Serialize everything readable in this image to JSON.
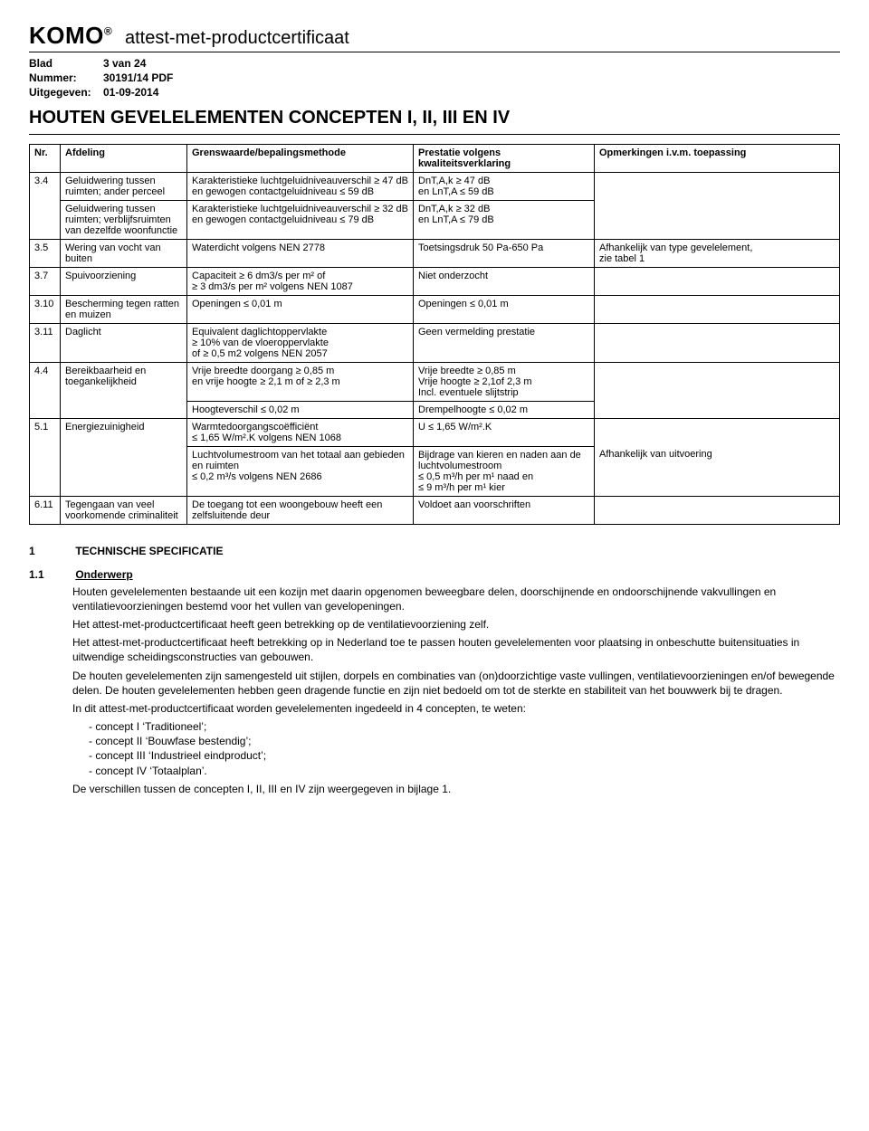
{
  "header": {
    "brand": "KOMO",
    "registered": "®",
    "subtitle": "attest-met-productcertificaat",
    "meta": {
      "blad_label": "Blad",
      "blad_value": "3 van 24",
      "nummer_label": "Nummer:",
      "nummer_value": "30191/14 PDF",
      "uitgegeven_label": "Uitgegeven:",
      "uitgegeven_value": "01-09-2014"
    },
    "heading": "HOUTEN GEVELELEMENTEN CONCEPTEN I, II, III EN IV"
  },
  "table": {
    "headers": {
      "nr": "Nr.",
      "afdeling": "Afdeling",
      "grenswaarde": "Grenswaarde/bepalingsmethode",
      "prestatie": "Prestatie volgens kwaliteitsverklaring",
      "opmerkingen": "Opmerkingen i.v.m. toepassing"
    },
    "rows": {
      "r34a": {
        "nr": "3.4",
        "afd": "Geluidwering tussen ruimten; ander perceel",
        "grens": "Karakteristieke luchtgeluidniveauverschil ≥ 47 dB en gewogen contactgeluidniveau ≤ 59 dB",
        "prest": "DnT,A,k ≥ 47 dB\nen LnT,A ≤ 59 dB",
        "opm": ""
      },
      "r34b": {
        "nr": "",
        "afd": "Geluidwering tussen ruimten; verblijfsruimten van dezelfde woonfunctie",
        "grens": "Karakteristieke luchtgeluidniveauverschil ≥ 32 dB en gewogen contactgeluidniveau ≤ 79 dB",
        "prest": "DnT,A,k ≥ 32 dB\nen LnT,A ≤ 79 dB",
        "opm": ""
      },
      "r35": {
        "nr": "3.5",
        "afd": "Wering van vocht van buiten",
        "grens": "Waterdicht volgens NEN 2778",
        "prest": "Toetsingsdruk 50 Pa-650 Pa",
        "opm": "Afhankelijk van type gevelelement,\nzie tabel 1"
      },
      "r37": {
        "nr": "3.7",
        "afd": "Spuivoorziening",
        "grens": "Capaciteit ≥ 6 dm3/s per m² of\n≥ 3 dm3/s per m² volgens NEN 1087",
        "prest": "Niet onderzocht",
        "opm": ""
      },
      "r310": {
        "nr": "3.10",
        "afd": "Bescherming tegen ratten en muizen",
        "grens": "Openingen ≤ 0,01 m",
        "prest": "Openingen  ≤ 0,01 m",
        "opm": ""
      },
      "r311": {
        "nr": "3.11",
        "afd": "Daglicht",
        "grens": "Equivalent daglichtoppervlakte\n≥ 10% van de vloeroppervlakte\nof ≥ 0,5 m2 volgens NEN 2057",
        "prest": "Geen vermelding prestatie",
        "opm": ""
      },
      "r44a": {
        "nr": "4.4",
        "afd": "Bereikbaarheid en toegankelijkheid",
        "grens": "Vrije breedte doorgang ≥ 0,85 m\nen vrije hoogte ≥ 2,1 m of ≥ 2,3 m",
        "prest": "Vrije breedte ≥ 0,85 m\nVrije hoogte ≥ 2,1of 2,3 m\nIncl. eventuele slijtstrip",
        "opm": ""
      },
      "r44b": {
        "nr": "",
        "afd": "",
        "grens": "Hoogteverschil ≤ 0,02 m",
        "prest": "Drempelhoogte ≤ 0,02 m",
        "opm": ""
      },
      "r51a": {
        "nr": "5.1",
        "afd": "Energiezuinigheid",
        "grens": "Warmtedoorgangscoëfficiënt\n≤ 1,65 W/m².K volgens NEN 1068",
        "prest": "U ≤ 1,65 W/m².K",
        "opm": ""
      },
      "r51b": {
        "nr": "",
        "afd": "",
        "grens": "Luchtvolumestroom van het totaal aan gebieden en ruimten\n≤ 0,2 m³/s volgens NEN 2686",
        "prest": "Bijdrage van kieren en naden aan de luchtvolumestroom\n≤ 0,5 m³/h per m¹ naad en\n≤ 9 m³/h per m¹ kier",
        "opm": "Afhankelijk van uitvoering"
      },
      "r611": {
        "nr": "6.11",
        "afd": "Tegengaan van veel voorkomende criminaliteit",
        "grens": "De toegang tot een woongebouw heeft een zelfsluitende deur",
        "prest": "Voldoet aan voorschriften",
        "opm": ""
      }
    }
  },
  "sections": {
    "s1": {
      "num": "1",
      "title": "TECHNISCHE SPECIFICATIE"
    },
    "s11": {
      "num": "1.1",
      "title": "Onderwerp",
      "p1": "Houten gevelelementen bestaande uit een kozijn met daarin opgenomen beweegbare delen, doorschijnende en ondoorschijnende vakvullingen en ventilatievoorzieningen bestemd voor het vullen van gevelopeningen.",
      "p2": "Het attest-met-productcertificaat heeft geen betrekking op de ventilatievoorziening zelf.",
      "p3": "Het attest-met-productcertificaat heeft betrekking op in Nederland toe te passen houten gevelelementen voor plaatsing in onbeschutte buitensituaties in uitwendige scheidingsconstructies van gebouwen.",
      "p4": "De houten gevelelementen zijn samengesteld uit stijlen, dorpels en combinaties van (on)doorzichtige vaste vullingen, ventilatievoorzieningen en/of bewegende delen. De houten gevelelementen hebben geen dragende functie en zijn niet bedoeld om tot de sterkte en stabiliteit van het bouwwerk bij te dragen.",
      "p5": "In dit attest-met-productcertificaat worden gevelelementen ingedeeld in 4 concepten, te weten:",
      "li1": "concept I ‘Traditioneel’;",
      "li2": "concept II ‘Bouwfase bestendig’;",
      "li3": "concept III ‘Industrieel eindproduct’;",
      "li4": "concept IV ‘Totaalplan’.",
      "p6": "De verschillen tussen de concepten I, II, III en IV zijn weergegeven in bijlage 1."
    }
  }
}
